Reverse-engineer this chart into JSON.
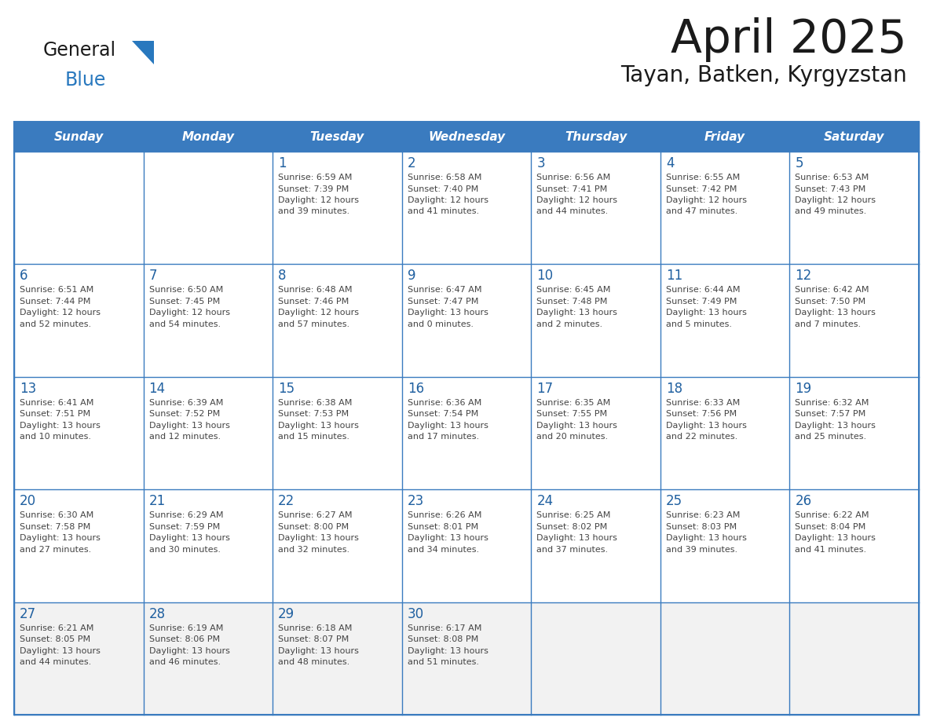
{
  "title": "April 2025",
  "subtitle": "Tayan, Batken, Kyrgyzstan",
  "days_of_week": [
    "Sunday",
    "Monday",
    "Tuesday",
    "Wednesday",
    "Thursday",
    "Friday",
    "Saturday"
  ],
  "header_bg": "#3A7BBF",
  "header_text": "#FFFFFF",
  "cell_bg": "#FFFFFF",
  "cell_bg_last": "#F2F2F2",
  "border_color": "#3A7BBF",
  "day_number_color": "#2060A0",
  "cell_text_color": "#444444",
  "title_color": "#1a1a1a",
  "subtitle_color": "#1a1a1a",
  "logo_black": "#1a1a1a",
  "logo_blue": "#2878BE",
  "calendar": [
    [
      {
        "day": null,
        "info": ""
      },
      {
        "day": null,
        "info": ""
      },
      {
        "day": 1,
        "info": "Sunrise: 6:59 AM\nSunset: 7:39 PM\nDaylight: 12 hours\nand 39 minutes."
      },
      {
        "day": 2,
        "info": "Sunrise: 6:58 AM\nSunset: 7:40 PM\nDaylight: 12 hours\nand 41 minutes."
      },
      {
        "day": 3,
        "info": "Sunrise: 6:56 AM\nSunset: 7:41 PM\nDaylight: 12 hours\nand 44 minutes."
      },
      {
        "day": 4,
        "info": "Sunrise: 6:55 AM\nSunset: 7:42 PM\nDaylight: 12 hours\nand 47 minutes."
      },
      {
        "day": 5,
        "info": "Sunrise: 6:53 AM\nSunset: 7:43 PM\nDaylight: 12 hours\nand 49 minutes."
      }
    ],
    [
      {
        "day": 6,
        "info": "Sunrise: 6:51 AM\nSunset: 7:44 PM\nDaylight: 12 hours\nand 52 minutes."
      },
      {
        "day": 7,
        "info": "Sunrise: 6:50 AM\nSunset: 7:45 PM\nDaylight: 12 hours\nand 54 minutes."
      },
      {
        "day": 8,
        "info": "Sunrise: 6:48 AM\nSunset: 7:46 PM\nDaylight: 12 hours\nand 57 minutes."
      },
      {
        "day": 9,
        "info": "Sunrise: 6:47 AM\nSunset: 7:47 PM\nDaylight: 13 hours\nand 0 minutes."
      },
      {
        "day": 10,
        "info": "Sunrise: 6:45 AM\nSunset: 7:48 PM\nDaylight: 13 hours\nand 2 minutes."
      },
      {
        "day": 11,
        "info": "Sunrise: 6:44 AM\nSunset: 7:49 PM\nDaylight: 13 hours\nand 5 minutes."
      },
      {
        "day": 12,
        "info": "Sunrise: 6:42 AM\nSunset: 7:50 PM\nDaylight: 13 hours\nand 7 minutes."
      }
    ],
    [
      {
        "day": 13,
        "info": "Sunrise: 6:41 AM\nSunset: 7:51 PM\nDaylight: 13 hours\nand 10 minutes."
      },
      {
        "day": 14,
        "info": "Sunrise: 6:39 AM\nSunset: 7:52 PM\nDaylight: 13 hours\nand 12 minutes."
      },
      {
        "day": 15,
        "info": "Sunrise: 6:38 AM\nSunset: 7:53 PM\nDaylight: 13 hours\nand 15 minutes."
      },
      {
        "day": 16,
        "info": "Sunrise: 6:36 AM\nSunset: 7:54 PM\nDaylight: 13 hours\nand 17 minutes."
      },
      {
        "day": 17,
        "info": "Sunrise: 6:35 AM\nSunset: 7:55 PM\nDaylight: 13 hours\nand 20 minutes."
      },
      {
        "day": 18,
        "info": "Sunrise: 6:33 AM\nSunset: 7:56 PM\nDaylight: 13 hours\nand 22 minutes."
      },
      {
        "day": 19,
        "info": "Sunrise: 6:32 AM\nSunset: 7:57 PM\nDaylight: 13 hours\nand 25 minutes."
      }
    ],
    [
      {
        "day": 20,
        "info": "Sunrise: 6:30 AM\nSunset: 7:58 PM\nDaylight: 13 hours\nand 27 minutes."
      },
      {
        "day": 21,
        "info": "Sunrise: 6:29 AM\nSunset: 7:59 PM\nDaylight: 13 hours\nand 30 minutes."
      },
      {
        "day": 22,
        "info": "Sunrise: 6:27 AM\nSunset: 8:00 PM\nDaylight: 13 hours\nand 32 minutes."
      },
      {
        "day": 23,
        "info": "Sunrise: 6:26 AM\nSunset: 8:01 PM\nDaylight: 13 hours\nand 34 minutes."
      },
      {
        "day": 24,
        "info": "Sunrise: 6:25 AM\nSunset: 8:02 PM\nDaylight: 13 hours\nand 37 minutes."
      },
      {
        "day": 25,
        "info": "Sunrise: 6:23 AM\nSunset: 8:03 PM\nDaylight: 13 hours\nand 39 minutes."
      },
      {
        "day": 26,
        "info": "Sunrise: 6:22 AM\nSunset: 8:04 PM\nDaylight: 13 hours\nand 41 minutes."
      }
    ],
    [
      {
        "day": 27,
        "info": "Sunrise: 6:21 AM\nSunset: 8:05 PM\nDaylight: 13 hours\nand 44 minutes."
      },
      {
        "day": 28,
        "info": "Sunrise: 6:19 AM\nSunset: 8:06 PM\nDaylight: 13 hours\nand 46 minutes."
      },
      {
        "day": 29,
        "info": "Sunrise: 6:18 AM\nSunset: 8:07 PM\nDaylight: 13 hours\nand 48 minutes."
      },
      {
        "day": 30,
        "info": "Sunrise: 6:17 AM\nSunset: 8:08 PM\nDaylight: 13 hours\nand 51 minutes."
      },
      {
        "day": null,
        "info": ""
      },
      {
        "day": null,
        "info": ""
      },
      {
        "day": null,
        "info": ""
      }
    ]
  ]
}
